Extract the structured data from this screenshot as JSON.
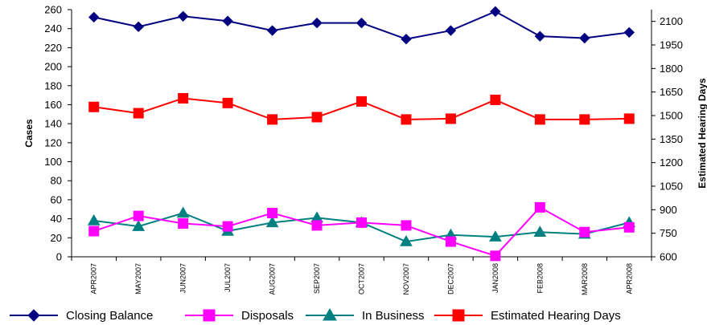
{
  "chart_data": {
    "type": "line",
    "categories": [
      "APR2007",
      "MAY2007",
      "JUN2007",
      "JUL2007",
      "AUG2007",
      "SEP2007",
      "OCT2007",
      "NOV2007",
      "DEC2007",
      "JAN2008",
      "FEB2008",
      "MAR2008",
      "APR2008"
    ],
    "ylabel": "Cases",
    "y2label": "Estimated Hearing Days",
    "ylim": [
      0,
      260
    ],
    "yticks": [
      0,
      20,
      40,
      60,
      80,
      100,
      120,
      140,
      160,
      180,
      200,
      220,
      240,
      260
    ],
    "y2lim": [
      600,
      2175
    ],
    "y2ticks": [
      600,
      750,
      900,
      1050,
      1200,
      1350,
      1500,
      1650,
      1800,
      1950,
      2100
    ],
    "grid": false,
    "legend_position": "bottom",
    "series": [
      {
        "name": "Closing Balance",
        "axis": "left",
        "color": "#000080",
        "marker": "diamond",
        "values": [
          252,
          242,
          253,
          248,
          238,
          246,
          246,
          229,
          238,
          258,
          232,
          230,
          236
        ]
      },
      {
        "name": "Disposals",
        "axis": "left",
        "color": "#ff00ff",
        "marker": "square",
        "values": [
          27,
          43,
          35,
          32,
          46,
          33,
          36,
          33,
          16,
          1,
          52,
          26,
          31
        ]
      },
      {
        "name": "In Business",
        "axis": "left",
        "color": "#008080",
        "marker": "triangle",
        "values": [
          38,
          32,
          46,
          27,
          36,
          41,
          36,
          16,
          23,
          21,
          26,
          24,
          36
        ]
      },
      {
        "name": "Estimated Hearing Days",
        "axis": "right",
        "color": "#ff0000",
        "marker": "square",
        "values": [
          1555,
          1515,
          1610,
          1580,
          1475,
          1490,
          1590,
          1475,
          1480,
          1600,
          1475,
          1475,
          1480
        ]
      }
    ]
  }
}
